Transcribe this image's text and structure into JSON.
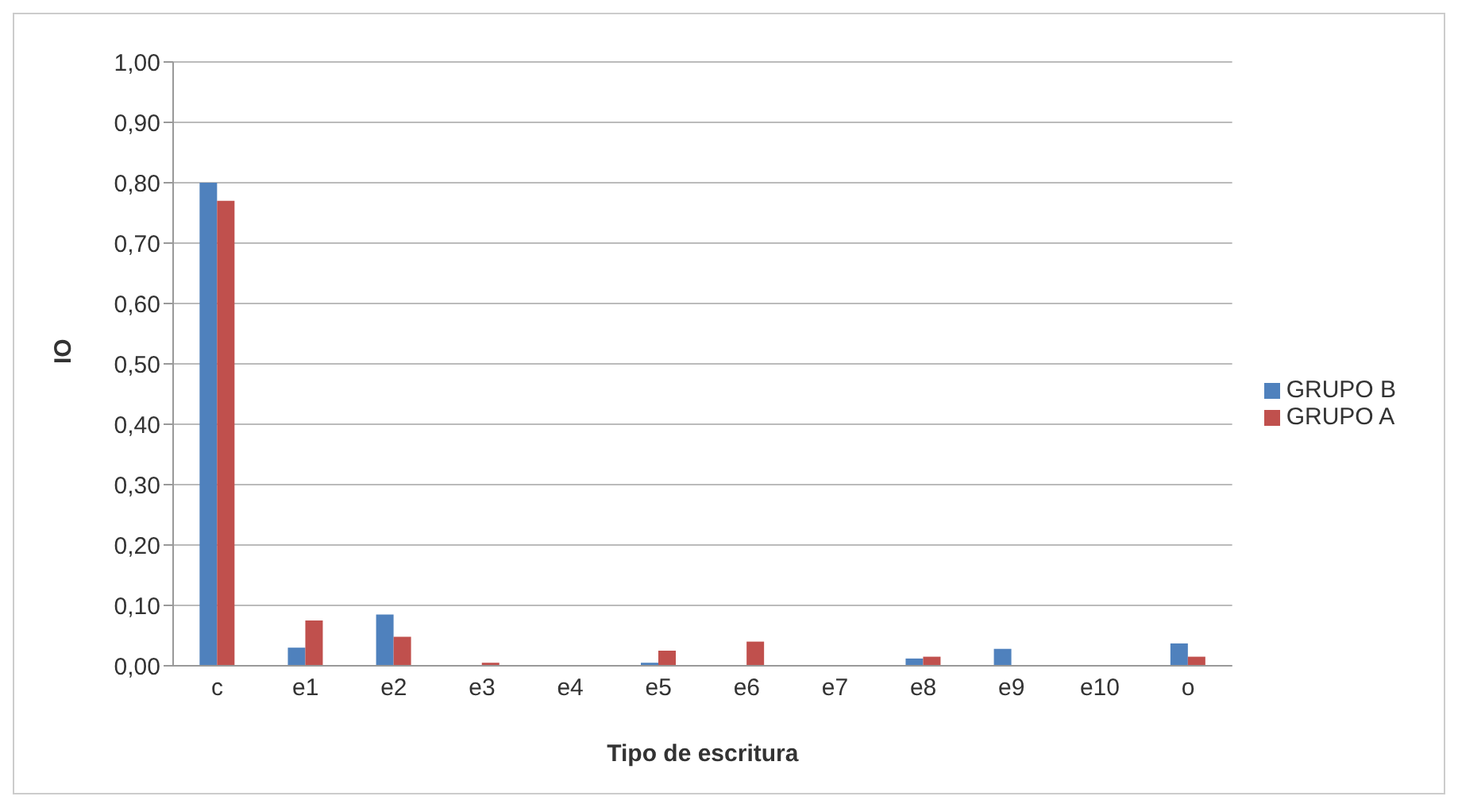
{
  "chart_data": {
    "type": "bar",
    "xlabel": "Tipo de escritura",
    "ylabel": "IO",
    "categories": [
      "c",
      "e1",
      "e2",
      "e3",
      "e4",
      "e5",
      "e6",
      "e7",
      "e8",
      "e9",
      "e10",
      "o"
    ],
    "series": [
      {
        "name": "GRUPO B",
        "color": "#4f81bd",
        "values": [
          0.8,
          0.03,
          0.085,
          0,
          0,
          0.005,
          0,
          0,
          0.012,
          0.028,
          0,
          0.037
        ]
      },
      {
        "name": "GRUPO  A",
        "color": "#c0504d",
        "values": [
          0.77,
          0.075,
          0.048,
          0.005,
          0,
          0.025,
          0.04,
          0,
          0.015,
          0,
          0,
          0.015
        ]
      }
    ],
    "ylim": [
      0,
      1
    ],
    "yticks": [
      {
        "value": 0,
        "label": "0,00"
      },
      {
        "value": 0.1,
        "label": "0,10"
      },
      {
        "value": 0.2,
        "label": "0,20"
      },
      {
        "value": 0.3,
        "label": "0,30"
      },
      {
        "value": 0.4,
        "label": "0,40"
      },
      {
        "value": 0.5,
        "label": "0,50"
      },
      {
        "value": 0.6,
        "label": "0,60"
      },
      {
        "value": 0.7,
        "label": "0,70"
      },
      {
        "value": 0.8,
        "label": "0,80"
      },
      {
        "value": 0.9,
        "label": "0,90"
      },
      {
        "value": 1,
        "label": "1,00"
      }
    ],
    "grid": "y",
    "legend": "right"
  }
}
